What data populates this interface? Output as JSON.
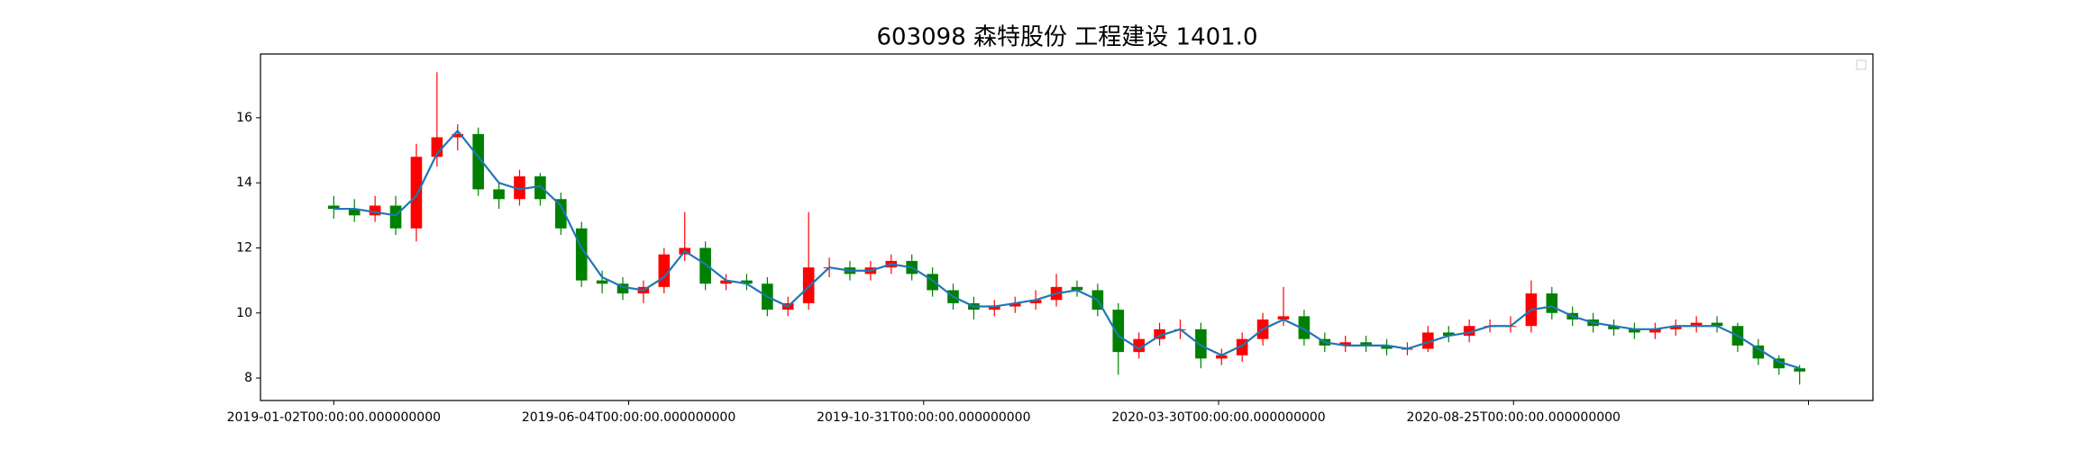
{
  "chart_data": {
    "type": "candlestick",
    "title": "603098 森特股份 工程建设 1401.0",
    "x": [
      0,
      7,
      14,
      21,
      28,
      35,
      42,
      49,
      56,
      63,
      70,
      77,
      84,
      91,
      98,
      105,
      112,
      119,
      126,
      133,
      140,
      147,
      154,
      161,
      168,
      175,
      182,
      189,
      196,
      203,
      210,
      217,
      224,
      231,
      238,
      245,
      252,
      259,
      266,
      273,
      280,
      287,
      294,
      301,
      308,
      315,
      322,
      329,
      336,
      343,
      350,
      357,
      364,
      371,
      378,
      385,
      392,
      399,
      406,
      413,
      420,
      427,
      434,
      441,
      448,
      455,
      462,
      469,
      476,
      483,
      490,
      497
    ],
    "open": [
      13.3,
      13.2,
      13.0,
      13.3,
      12.6,
      14.8,
      15.4,
      15.5,
      13.8,
      13.5,
      14.2,
      13.5,
      12.6,
      11.0,
      10.9,
      10.6,
      10.8,
      11.8,
      12.0,
      10.9,
      11.0,
      10.9,
      10.1,
      10.3,
      11.4,
      11.4,
      11.2,
      11.4,
      11.6,
      11.2,
      10.7,
      10.3,
      10.1,
      10.2,
      10.3,
      10.4,
      10.8,
      10.7,
      10.1,
      8.8,
      9.2,
      9.5,
      9.5,
      8.6,
      8.7,
      9.2,
      9.8,
      9.9,
      9.2,
      9.0,
      9.1,
      9.0,
      8.9,
      8.9,
      9.4,
      9.3,
      9.6,
      9.6,
      9.6,
      10.6,
      10.0,
      9.8,
      9.6,
      9.5,
      9.4,
      9.5,
      9.6,
      9.7,
      9.6,
      9.0,
      8.6,
      8.3
    ],
    "high": [
      13.6,
      13.5,
      13.6,
      13.6,
      15.2,
      17.4,
      15.8,
      15.7,
      14.0,
      14.4,
      14.3,
      13.7,
      12.8,
      11.3,
      11.1,
      11.0,
      12.0,
      13.1,
      12.2,
      11.2,
      11.2,
      11.1,
      10.5,
      13.1,
      11.7,
      11.6,
      11.6,
      11.8,
      11.8,
      11.4,
      10.9,
      10.5,
      10.4,
      10.5,
      10.7,
      11.2,
      11.0,
      10.9,
      10.3,
      9.4,
      9.7,
      9.8,
      9.7,
      8.9,
      9.4,
      10.0,
      10.8,
      10.1,
      9.4,
      9.3,
      9.3,
      9.2,
      9.1,
      9.6,
      9.6,
      9.8,
      9.8,
      9.9,
      11.0,
      10.8,
      10.2,
      10.0,
      9.8,
      9.7,
      9.7,
      9.8,
      9.9,
      9.9,
      9.7,
      9.2,
      8.7,
      8.4
    ],
    "low": [
      12.9,
      12.8,
      12.8,
      12.4,
      12.2,
      14.5,
      15.0,
      13.6,
      13.2,
      13.3,
      13.3,
      12.4,
      10.8,
      10.6,
      10.4,
      10.3,
      10.6,
      11.6,
      10.7,
      10.7,
      10.7,
      9.9,
      9.9,
      10.1,
      11.1,
      11.0,
      11.0,
      11.2,
      11.0,
      10.5,
      10.1,
      9.8,
      9.9,
      10.0,
      10.1,
      10.2,
      10.5,
      9.9,
      8.1,
      8.6,
      9.0,
      9.2,
      8.3,
      8.4,
      8.5,
      9.0,
      9.6,
      9.0,
      8.8,
      8.8,
      8.8,
      8.7,
      8.7,
      8.8,
      9.1,
      9.1,
      9.4,
      9.4,
      9.4,
      9.8,
      9.6,
      9.4,
      9.3,
      9.2,
      9.2,
      9.3,
      9.4,
      9.4,
      8.8,
      8.4,
      8.1,
      7.8
    ],
    "close": [
      13.2,
      13.0,
      13.3,
      12.6,
      14.8,
      15.4,
      15.5,
      13.8,
      13.5,
      14.2,
      13.5,
      12.6,
      11.0,
      10.9,
      10.6,
      10.8,
      11.8,
      12.0,
      10.9,
      11.0,
      10.9,
      10.1,
      10.3,
      11.4,
      11.4,
      11.2,
      11.4,
      11.6,
      11.2,
      10.7,
      10.3,
      10.1,
      10.2,
      10.3,
      10.4,
      10.8,
      10.7,
      10.1,
      8.8,
      9.2,
      9.5,
      9.5,
      8.6,
      8.7,
      9.2,
      9.8,
      9.9,
      9.2,
      9.0,
      9.1,
      9.0,
      8.9,
      8.9,
      9.4,
      9.3,
      9.6,
      9.6,
      9.6,
      10.6,
      10.0,
      9.8,
      9.6,
      9.5,
      9.4,
      9.5,
      9.6,
      9.7,
      9.6,
      9.0,
      8.6,
      8.3,
      8.2
    ],
    "up_color": "#ff0000",
    "down_color": "#008000",
    "line": {
      "color": "#1f77b4",
      "values": [
        13.2,
        13.2,
        13.1,
        13.0,
        13.6,
        14.9,
        15.6,
        14.8,
        14.0,
        13.8,
        13.9,
        13.3,
        12.0,
        11.1,
        10.8,
        10.7,
        11.1,
        11.9,
        11.5,
        11.0,
        10.9,
        10.5,
        10.2,
        10.8,
        11.4,
        11.3,
        11.3,
        11.5,
        11.4,
        11.0,
        10.5,
        10.2,
        10.2,
        10.3,
        10.4,
        10.6,
        10.7,
        10.4,
        9.3,
        8.9,
        9.3,
        9.5,
        9.0,
        8.7,
        9.0,
        9.5,
        9.8,
        9.5,
        9.1,
        9.0,
        9.0,
        9.0,
        8.9,
        9.1,
        9.3,
        9.4,
        9.6,
        9.6,
        10.1,
        10.2,
        9.9,
        9.7,
        9.6,
        9.5,
        9.5,
        9.6,
        9.6,
        9.6,
        9.3,
        8.9,
        8.5,
        8.3
      ]
    },
    "xlim": [
      -24.85,
      521.85
    ],
    "ylim": [
      7.31,
      17.96
    ],
    "xticks": [
      {
        "value": 0,
        "label": "2019-01-02T00:00:00.000000000"
      },
      {
        "value": 100,
        "label": "2019-06-04T00:00:00.000000000"
      },
      {
        "value": 200,
        "label": "2019-10-31T00:00:00.000000000"
      },
      {
        "value": 300,
        "label": "2020-03-30T00:00:00.000000000"
      },
      {
        "value": 400,
        "label": "2020-08-25T00:00:00.000000000"
      },
      {
        "value": 500,
        "label": null
      }
    ],
    "yticks": [
      8,
      10,
      12,
      14,
      16
    ]
  }
}
